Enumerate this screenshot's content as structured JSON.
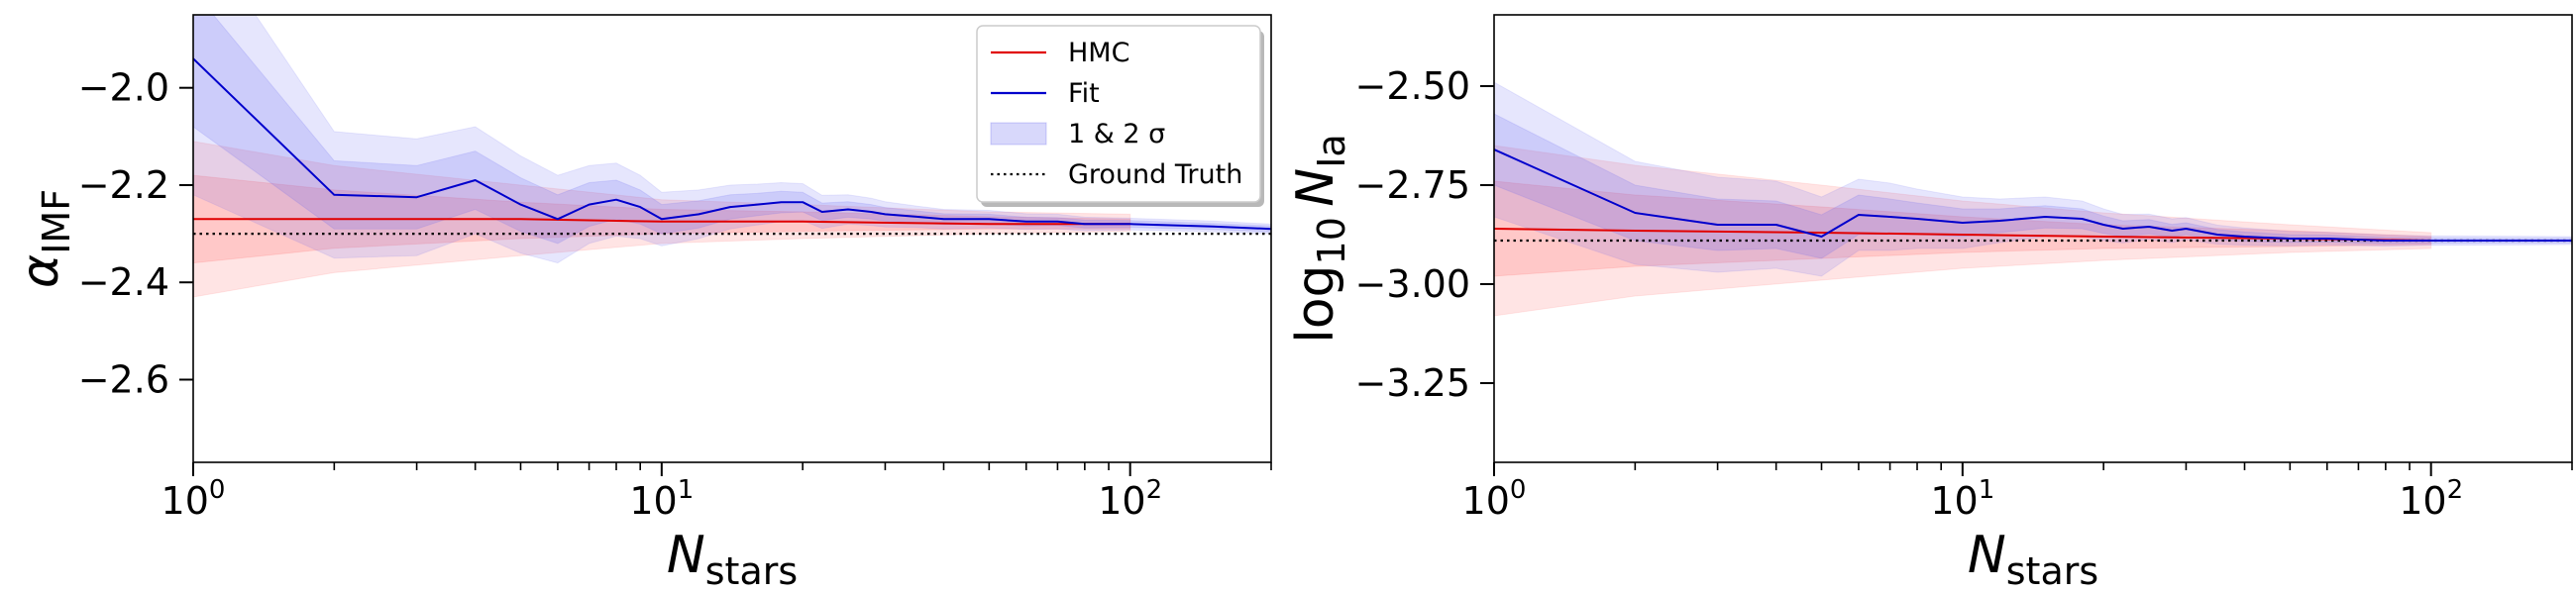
{
  "figure": {
    "panels": [
      {
        "ylabel_sym": "α",
        "ylabel_sub": "IMF",
        "xlabel_sym": "N",
        "xlabel_sub": "stars",
        "yticks": [
          -2.0,
          -2.2,
          -2.4,
          -2.6
        ],
        "ytick_labels": [
          "−2.0",
          "−2.2",
          "−2.4",
          "−2.6"
        ],
        "xticks": [
          1,
          10,
          100
        ],
        "xtick_labels": [
          {
            "base": "10",
            "exp": "0"
          },
          {
            "base": "10",
            "exp": "1"
          },
          {
            "base": "10",
            "exp": "2"
          }
        ]
      },
      {
        "ylabel_pre": "log",
        "ylabel_pre_sub": "10",
        "ylabel_sym": "N",
        "ylabel_sub": "Ia",
        "xlabel_sym": "N",
        "xlabel_sub": "stars",
        "yticks": [
          -2.5,
          -2.75,
          -3.0,
          -3.25
        ],
        "ytick_labels": [
          "−2.50",
          "−2.75",
          "−3.00",
          "−3.25"
        ],
        "xticks": [
          1,
          10,
          100
        ],
        "xtick_labels": [
          {
            "base": "10",
            "exp": "0"
          },
          {
            "base": "10",
            "exp": "1"
          },
          {
            "base": "10",
            "exp": "2"
          }
        ]
      }
    ],
    "legend": {
      "items": [
        {
          "label": "HMC",
          "kind": "line",
          "color": "#e00000"
        },
        {
          "label": "Fit",
          "kind": "line",
          "color": "#0000cc"
        },
        {
          "label": "1 & 2 σ",
          "kind": "patch",
          "color": "#6464f0"
        },
        {
          "label": "Ground Truth",
          "kind": "dotted",
          "color": "#000000"
        }
      ]
    }
  },
  "chart_data": [
    {
      "type": "line",
      "xscale": "log",
      "xlabel": "N_stars",
      "ylabel": "α_IMF",
      "xlim": [
        1,
        200
      ],
      "ylim": [
        -2.77,
        -1.85
      ],
      "grid": false,
      "legend_position": "top-right",
      "ground_truth": -2.3,
      "hmc": {
        "x": [
          1,
          2,
          5,
          10,
          20,
          50,
          100
        ],
        "mean": [
          -2.27,
          -2.27,
          -2.27,
          -2.275,
          -2.275,
          -2.28,
          -2.28
        ],
        "sigma1_low": [
          -2.36,
          -2.33,
          -2.31,
          -2.3,
          -2.295,
          -2.29,
          -2.29
        ],
        "sigma1_high": [
          -2.18,
          -2.21,
          -2.235,
          -2.25,
          -2.255,
          -2.265,
          -2.27
        ],
        "sigma2_low": [
          -2.43,
          -2.38,
          -2.345,
          -2.32,
          -2.31,
          -2.3,
          -2.295
        ],
        "sigma2_high": [
          -2.11,
          -2.16,
          -2.2,
          -2.23,
          -2.24,
          -2.255,
          -2.26
        ]
      },
      "fit": {
        "x": [
          1,
          2,
          3,
          4,
          5,
          6,
          7,
          8,
          9,
          10,
          12,
          14,
          16,
          18,
          20,
          22,
          25,
          28,
          30,
          35,
          40,
          50,
          60,
          70,
          80,
          100,
          150,
          200
        ],
        "mean": [
          -1.94,
          -2.22,
          -2.225,
          -2.19,
          -2.24,
          -2.27,
          -2.24,
          -2.23,
          -2.245,
          -2.27,
          -2.26,
          -2.245,
          -2.24,
          -2.235,
          -2.235,
          -2.255,
          -2.25,
          -2.255,
          -2.26,
          -2.265,
          -2.27,
          -2.27,
          -2.275,
          -2.275,
          -2.28,
          -2.28,
          -2.285,
          -2.29
        ],
        "sigma1_halfwidth": [
          0.14,
          0.07,
          0.065,
          0.06,
          0.055,
          0.05,
          0.045,
          0.04,
          0.035,
          0.03,
          0.028,
          0.025,
          0.023,
          0.022,
          0.02,
          0.018,
          0.016,
          0.015,
          0.014,
          0.012,
          0.011,
          0.01,
          0.009,
          0.008,
          0.008,
          0.007,
          0.006,
          0.006
        ],
        "sigma2_halfwidth": [
          0.28,
          0.13,
          0.12,
          0.11,
          0.1,
          0.09,
          0.08,
          0.075,
          0.065,
          0.055,
          0.05,
          0.045,
          0.042,
          0.04,
          0.038,
          0.034,
          0.03,
          0.028,
          0.026,
          0.022,
          0.02,
          0.018,
          0.016,
          0.015,
          0.014,
          0.012,
          0.011,
          0.01
        ]
      }
    },
    {
      "type": "line",
      "xscale": "log",
      "xlabel": "N_stars",
      "ylabel": "log10 N_Ia",
      "xlim": [
        1,
        200
      ],
      "ylim": [
        -3.45,
        -2.32
      ],
      "grid": false,
      "ground_truth": -2.89,
      "hmc": {
        "x": [
          1,
          2,
          5,
          10,
          20,
          50,
          100
        ],
        "mean": [
          -2.86,
          -2.865,
          -2.87,
          -2.875,
          -2.88,
          -2.885,
          -2.89
        ],
        "sigma1_low": [
          -2.98,
          -2.955,
          -2.935,
          -2.92,
          -2.91,
          -2.905,
          -2.9
        ],
        "sigma1_high": [
          -2.74,
          -2.775,
          -2.805,
          -2.83,
          -2.85,
          -2.865,
          -2.88
        ],
        "sigma2_low": [
          -3.08,
          -3.03,
          -2.99,
          -2.96,
          -2.94,
          -2.92,
          -2.91
        ],
        "sigma2_high": [
          -2.65,
          -2.7,
          -2.75,
          -2.79,
          -2.82,
          -2.85,
          -2.87
        ]
      },
      "fit": {
        "x": [
          1,
          2,
          3,
          4,
          5,
          6,
          7,
          8,
          10,
          12,
          15,
          18,
          20,
          22,
          25,
          28,
          30,
          35,
          40,
          50,
          60,
          80,
          100,
          150,
          200
        ],
        "mean": [
          -2.66,
          -2.82,
          -2.85,
          -2.85,
          -2.88,
          -2.825,
          -2.83,
          -2.835,
          -2.845,
          -2.84,
          -2.83,
          -2.835,
          -2.85,
          -2.86,
          -2.855,
          -2.865,
          -2.86,
          -2.875,
          -2.88,
          -2.885,
          -2.885,
          -2.89,
          -2.89,
          -2.89,
          -2.89
        ],
        "sigma1_halfwidth": [
          0.09,
          0.07,
          0.065,
          0.06,
          0.055,
          0.05,
          0.045,
          0.04,
          0.035,
          0.03,
          0.028,
          0.025,
          0.022,
          0.02,
          0.018,
          0.016,
          0.015,
          0.013,
          0.012,
          0.01,
          0.009,
          0.008,
          0.007,
          0.006,
          0.006
        ],
        "sigma2_halfwidth": [
          0.17,
          0.13,
          0.12,
          0.11,
          0.1,
          0.09,
          0.085,
          0.075,
          0.065,
          0.055,
          0.05,
          0.045,
          0.04,
          0.036,
          0.032,
          0.03,
          0.028,
          0.024,
          0.022,
          0.018,
          0.016,
          0.014,
          0.012,
          0.011,
          0.01
        ]
      }
    }
  ]
}
